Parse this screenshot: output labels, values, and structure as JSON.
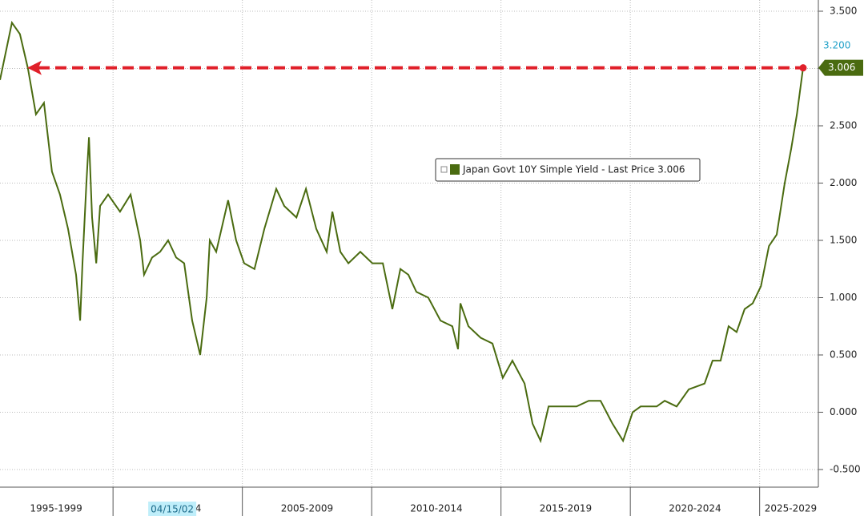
{
  "chart_data": {
    "type": "line",
    "x": [
      1995.63,
      1996.09,
      1996.4,
      1996.71,
      1997.02,
      1997.33,
      1997.64,
      1997.95,
      1998.26,
      1998.57,
      1998.73,
      1998.82,
      1998.97,
      1999.07,
      1999.19,
      1999.35,
      1999.5,
      1999.81,
      2000.27,
      2000.68,
      2001.05,
      2001.2,
      2001.51,
      2001.82,
      2002.13,
      2002.44,
      2002.75,
      2003.06,
      2003.37,
      2003.62,
      2003.74,
      2003.99,
      2004.45,
      2004.76,
      2005.07,
      2005.47,
      2005.85,
      2006.31,
      2006.62,
      2007.09,
      2007.46,
      2007.86,
      2008.26,
      2008.48,
      2008.79,
      2009.1,
      2009.56,
      2010.03,
      2010.43,
      2010.8,
      2011.11,
      2011.42,
      2011.73,
      2012.19,
      2012.66,
      2013.12,
      2013.34,
      2013.43,
      2013.74,
      2014.21,
      2014.67,
      2015.07,
      2015.44,
      2015.91,
      2016.22,
      2016.53,
      2016.84,
      2017.3,
      2017.92,
      2018.39,
      2018.85,
      2019.31,
      2019.72,
      2020.09,
      2020.4,
      2021.02,
      2021.33,
      2021.79,
      2022.26,
      2022.87,
      2023.18,
      2023.49,
      2023.8,
      2024.11,
      2024.42,
      2024.73,
      2025.05,
      2025.36,
      2025.66,
      2025.97,
      2026.22,
      2026.44,
      2026.68
    ],
    "series": [
      {
        "name": "Japan Govt 10Y Simple Yield - Last Price 3.006",
        "color": "#4a6b10",
        "values": [
          2.9,
          3.4,
          3.3,
          3.0,
          2.6,
          2.7,
          2.1,
          1.9,
          1.6,
          1.2,
          0.8,
          1.3,
          2.0,
          2.4,
          1.7,
          1.3,
          1.8,
          1.9,
          1.75,
          1.9,
          1.5,
          1.2,
          1.35,
          1.4,
          1.5,
          1.35,
          1.3,
          0.8,
          0.5,
          1.0,
          1.5,
          1.4,
          1.85,
          1.5,
          1.3,
          1.25,
          1.6,
          1.95,
          1.8,
          1.7,
          1.95,
          1.6,
          1.4,
          1.75,
          1.4,
          1.3,
          1.4,
          1.3,
          1.3,
          0.9,
          1.25,
          1.2,
          1.05,
          1.0,
          0.8,
          0.75,
          0.55,
          0.95,
          0.75,
          0.65,
          0.6,
          0.3,
          0.45,
          0.25,
          -0.1,
          -0.25,
          0.05,
          0.05,
          0.05,
          0.1,
          0.1,
          -0.1,
          -0.25,
          0.0,
          0.05,
          0.05,
          0.1,
          0.05,
          0.2,
          0.25,
          0.45,
          0.45,
          0.75,
          0.7,
          0.9,
          0.95,
          1.1,
          1.45,
          1.55,
          2.0,
          2.3,
          2.6,
          3.006
        ]
      }
    ],
    "xlim": [
      1995.63,
      2027.27
    ],
    "xticks": [
      {
        "value": 1997.8,
        "label": "1995-1999"
      },
      {
        "value": 2002.4,
        "label": "2000-2004"
      },
      {
        "value": 2007.5,
        "label": "2005-2009"
      },
      {
        "value": 2012.5,
        "label": "2010-2014"
      },
      {
        "value": 2017.5,
        "label": "2015-2019"
      },
      {
        "value": 2022.5,
        "label": "2020-2024"
      },
      {
        "value": 2026.2,
        "label": "2025-2029"
      }
    ],
    "xgrid": [
      2000,
      2005,
      2010,
      2015,
      2020,
      2025
    ],
    "ylim": [
      -0.654,
      3.598
    ],
    "yticks": [
      {
        "value": -0.5,
        "label": "-0.500"
      },
      {
        "value": 0,
        "label": "0.000"
      },
      {
        "value": 0.5,
        "label": "0.500"
      },
      {
        "value": 1,
        "label": "1.000"
      },
      {
        "value": 1.5,
        "label": "1.500"
      },
      {
        "value": 2,
        "label": "2.000"
      },
      {
        "value": 2.5,
        "label": "2.500"
      },
      {
        "value": 3,
        "label": "3.000"
      },
      {
        "value": 3.5,
        "label": "3.500"
      }
    ],
    "grid": true,
    "cursor": {
      "x": 2002.29,
      "label": "04/15/02"
    },
    "axis_markers": [
      {
        "value": 3.2,
        "label": "3.200",
        "color": "#1fa0c8"
      },
      {
        "value": 3.006,
        "label": "3.006",
        "color": "#4a6b10"
      }
    ],
    "reference_line": {
      "value": 3.006,
      "color": "#e0202a"
    }
  }
}
